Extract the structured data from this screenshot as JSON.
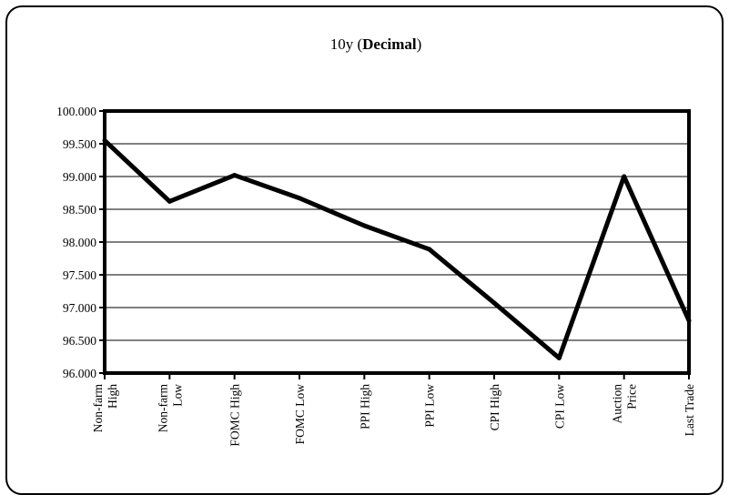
{
  "chart_data": {
    "type": "line",
    "title": "10y (",
    "title_bold": "Decimal",
    "title_end": ")",
    "xlabel": "",
    "ylabel": "",
    "ylim": [
      96.0,
      100.0
    ],
    "ytick_step": 0.5,
    "yticks": [
      "96.000",
      "96.500",
      "97.000",
      "97.500",
      "98.000",
      "98.500",
      "99.000",
      "99.500",
      "100.000"
    ],
    "grid": true,
    "legend": "none",
    "categories": [
      [
        "Non-farm",
        "High"
      ],
      [
        "Non-farm",
        "Low"
      ],
      [
        "FOMC High"
      ],
      [
        "FOMC Low"
      ],
      [
        "PPI High"
      ],
      [
        "PPI Low"
      ],
      [
        "CPI High"
      ],
      [
        "CPI Low"
      ],
      [
        "Auction",
        "Price"
      ],
      [
        "Last Trade"
      ]
    ],
    "series": [
      {
        "values": [
          99.55,
          98.62,
          99.02,
          98.67,
          98.25,
          97.89,
          97.07,
          96.23,
          99.0,
          96.8
        ]
      }
    ],
    "line_color": "#000000"
  }
}
